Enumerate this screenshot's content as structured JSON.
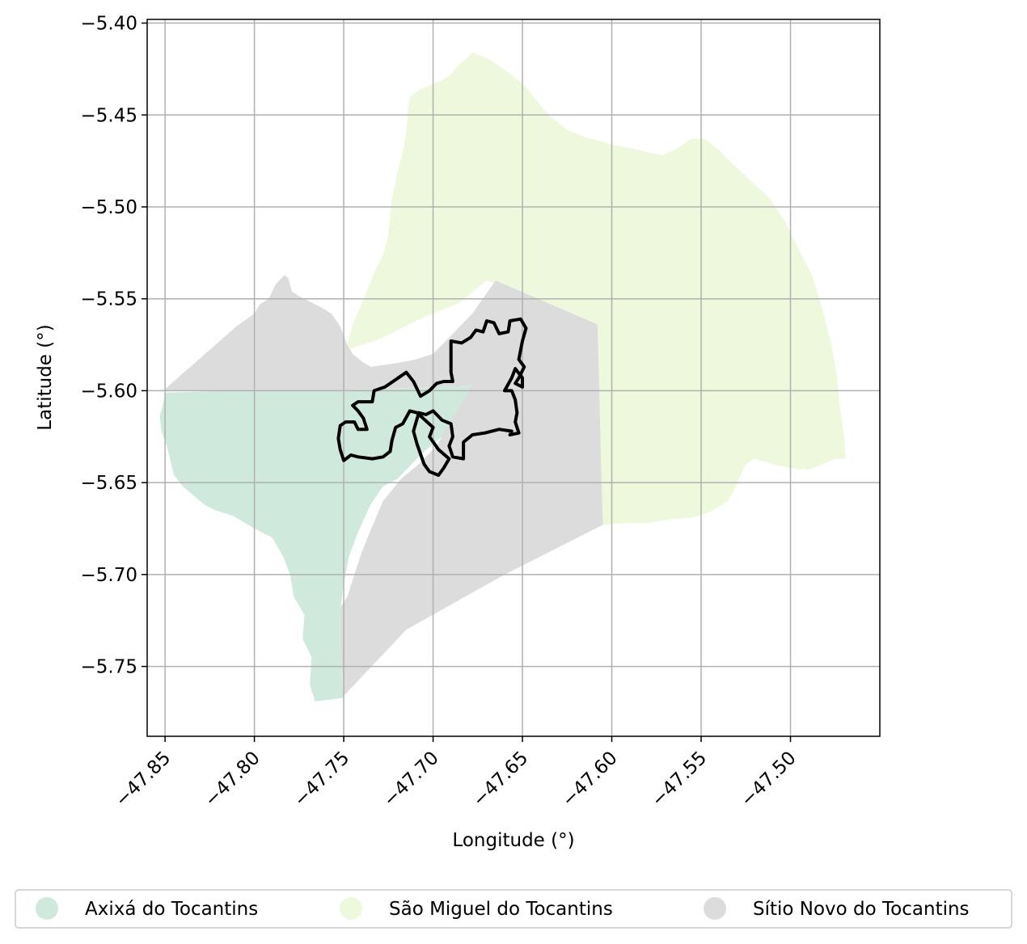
{
  "chart_data": {
    "type": "map",
    "xlabel": "Longitude (°)",
    "ylabel": "Latitude (°)",
    "xlim": [
      -47.86,
      -47.45
    ],
    "ylim": [
      -5.788,
      -5.398
    ],
    "xticks": [
      -47.85,
      -47.8,
      -47.75,
      -47.7,
      -47.65,
      -47.6,
      -47.55,
      -47.5
    ],
    "xtick_labels": [
      "−47.85",
      "−47.80",
      "−47.75",
      "−47.70",
      "−47.65",
      "−47.60",
      "−47.55",
      "−47.50"
    ],
    "yticks": [
      -5.4,
      -5.45,
      -5.5,
      -5.55,
      -5.6,
      -5.65,
      -5.7,
      -5.75
    ],
    "ytick_labels": [
      "−5.40",
      "−5.45",
      "−5.50",
      "−5.55",
      "−5.60",
      "−5.65",
      "−5.70",
      "−5.75"
    ],
    "grid": true,
    "legend_position": "bottom",
    "regions": [
      {
        "name": "Axixá do Tocantins",
        "color": "#cfeadc",
        "polygon": [
          [
            -47.85,
            -5.601
          ],
          [
            -47.81,
            -5.6
          ],
          [
            -47.77,
            -5.6
          ],
          [
            -47.73,
            -5.599
          ],
          [
            -47.7,
            -5.598
          ],
          [
            -47.678,
            -5.597
          ],
          [
            -47.682,
            -5.608
          ],
          [
            -47.69,
            -5.616
          ],
          [
            -47.695,
            -5.625
          ],
          [
            -47.705,
            -5.633
          ],
          [
            -47.713,
            -5.641
          ],
          [
            -47.72,
            -5.648
          ],
          [
            -47.728,
            -5.652
          ],
          [
            -47.735,
            -5.662
          ],
          [
            -47.742,
            -5.677
          ],
          [
            -47.747,
            -5.69
          ],
          [
            -47.75,
            -5.705
          ],
          [
            -47.752,
            -5.72
          ],
          [
            -47.752,
            -5.74
          ],
          [
            -47.751,
            -5.755
          ],
          [
            -47.75,
            -5.767
          ],
          [
            -47.757,
            -5.768
          ],
          [
            -47.766,
            -5.769
          ],
          [
            -47.769,
            -5.76
          ],
          [
            -47.768,
            -5.745
          ],
          [
            -47.773,
            -5.735
          ],
          [
            -47.772,
            -5.722
          ],
          [
            -47.778,
            -5.712
          ],
          [
            -47.78,
            -5.7
          ],
          [
            -47.784,
            -5.69
          ],
          [
            -47.79,
            -5.68
          ],
          [
            -47.8,
            -5.675
          ],
          [
            -47.812,
            -5.668
          ],
          [
            -47.822,
            -5.665
          ],
          [
            -47.828,
            -5.662
          ],
          [
            -47.833,
            -5.658
          ],
          [
            -47.84,
            -5.652
          ],
          [
            -47.845,
            -5.646
          ],
          [
            -47.847,
            -5.638
          ],
          [
            -47.849,
            -5.63
          ],
          [
            -47.852,
            -5.622
          ],
          [
            -47.853,
            -5.614
          ],
          [
            -47.851,
            -5.607
          ]
        ]
      },
      {
        "name": "São Miguel do Tocantins",
        "color": "#eef8dc",
        "polygon": [
          [
            -47.749,
            -5.578
          ],
          [
            -47.745,
            -5.564
          ],
          [
            -47.738,
            -5.548
          ],
          [
            -47.733,
            -5.536
          ],
          [
            -47.728,
            -5.526
          ],
          [
            -47.725,
            -5.515
          ],
          [
            -47.724,
            -5.505
          ],
          [
            -47.723,
            -5.495
          ],
          [
            -47.72,
            -5.482
          ],
          [
            -47.717,
            -5.47
          ],
          [
            -47.715,
            -5.46
          ],
          [
            -47.714,
            -5.447
          ],
          [
            -47.713,
            -5.44
          ],
          [
            -47.707,
            -5.436
          ],
          [
            -47.702,
            -5.434
          ],
          [
            -47.695,
            -5.431
          ],
          [
            -47.69,
            -5.428
          ],
          [
            -47.686,
            -5.423
          ],
          [
            -47.682,
            -5.42
          ],
          [
            -47.678,
            -5.416
          ],
          [
            -47.67,
            -5.419
          ],
          [
            -47.662,
            -5.424
          ],
          [
            -47.655,
            -5.429
          ],
          [
            -47.648,
            -5.435
          ],
          [
            -47.643,
            -5.441
          ],
          [
            -47.638,
            -5.447
          ],
          [
            -47.633,
            -5.452
          ],
          [
            -47.625,
            -5.458
          ],
          [
            -47.615,
            -5.462
          ],
          [
            -47.6,
            -5.466
          ],
          [
            -47.585,
            -5.469
          ],
          [
            -47.572,
            -5.472
          ],
          [
            -47.563,
            -5.468
          ],
          [
            -47.556,
            -5.463
          ],
          [
            -47.548,
            -5.463
          ],
          [
            -47.54,
            -5.469
          ],
          [
            -47.531,
            -5.478
          ],
          [
            -47.522,
            -5.486
          ],
          [
            -47.512,
            -5.495
          ],
          [
            -47.503,
            -5.508
          ],
          [
            -47.496,
            -5.522
          ],
          [
            -47.488,
            -5.537
          ],
          [
            -47.482,
            -5.556
          ],
          [
            -47.477,
            -5.575
          ],
          [
            -47.474,
            -5.593
          ],
          [
            -47.472,
            -5.612
          ],
          [
            -47.47,
            -5.625
          ],
          [
            -47.469,
            -5.637
          ],
          [
            -47.475,
            -5.637
          ],
          [
            -47.482,
            -5.64
          ],
          [
            -47.49,
            -5.643
          ],
          [
            -47.5,
            -5.642
          ],
          [
            -47.51,
            -5.64
          ],
          [
            -47.52,
            -5.637
          ],
          [
            -47.525,
            -5.64
          ],
          [
            -47.53,
            -5.651
          ],
          [
            -47.535,
            -5.66
          ],
          [
            -47.545,
            -5.666
          ],
          [
            -47.555,
            -5.669
          ],
          [
            -47.568,
            -5.67
          ],
          [
            -47.58,
            -5.672
          ],
          [
            -47.592,
            -5.672
          ],
          [
            -47.605,
            -5.673
          ],
          [
            -47.606,
            -5.64
          ],
          [
            -47.607,
            -5.6
          ],
          [
            -47.608,
            -5.564
          ],
          [
            -47.64,
            -5.551
          ],
          [
            -47.67,
            -5.54
          ],
          [
            -47.685,
            -5.552
          ],
          [
            -47.705,
            -5.56
          ],
          [
            -47.73,
            -5.572
          ]
        ]
      },
      {
        "name": "Sítio Novo do Tocantins",
        "color": "#dcdcdc",
        "polygon": [
          [
            -47.851,
            -5.6
          ],
          [
            -47.83,
            -5.582
          ],
          [
            -47.81,
            -5.565
          ],
          [
            -47.8,
            -5.558
          ],
          [
            -47.797,
            -5.553
          ],
          [
            -47.792,
            -5.55
          ],
          [
            -47.79,
            -5.546
          ],
          [
            -47.788,
            -5.542
          ],
          [
            -47.786,
            -5.54
          ],
          [
            -47.783,
            -5.537
          ],
          [
            -47.781,
            -5.539
          ],
          [
            -47.779,
            -5.546
          ],
          [
            -47.776,
            -5.548
          ],
          [
            -47.772,
            -5.55
          ],
          [
            -47.768,
            -5.552
          ],
          [
            -47.762,
            -5.555
          ],
          [
            -47.757,
            -5.558
          ],
          [
            -47.752,
            -5.565
          ],
          [
            -47.748,
            -5.575
          ],
          [
            -47.745,
            -5.58
          ],
          [
            -47.74,
            -5.584
          ],
          [
            -47.735,
            -5.587
          ],
          [
            -47.728,
            -5.586
          ],
          [
            -47.72,
            -5.585
          ],
          [
            -47.71,
            -5.583
          ],
          [
            -47.7,
            -5.58
          ],
          [
            -47.69,
            -5.57
          ],
          [
            -47.678,
            -5.558
          ],
          [
            -47.665,
            -5.54
          ],
          [
            -47.608,
            -5.564
          ],
          [
            -47.607,
            -5.6
          ],
          [
            -47.606,
            -5.64
          ],
          [
            -47.605,
            -5.673
          ],
          [
            -47.66,
            -5.7
          ],
          [
            -47.715,
            -5.73
          ],
          [
            -47.75,
            -5.766
          ],
          [
            -47.752,
            -5.74
          ],
          [
            -47.752,
            -5.718
          ],
          [
            -47.748,
            -5.712
          ],
          [
            -47.744,
            -5.7
          ],
          [
            -47.74,
            -5.688
          ],
          [
            -47.735,
            -5.676
          ],
          [
            -47.728,
            -5.66
          ],
          [
            -47.718,
            -5.648
          ],
          [
            -47.708,
            -5.64
          ],
          [
            -47.698,
            -5.63
          ],
          [
            -47.69,
            -5.616
          ],
          [
            -47.684,
            -5.607
          ],
          [
            -47.678,
            -5.597
          ],
          [
            -47.7,
            -5.598
          ],
          [
            -47.73,
            -5.599
          ],
          [
            -47.77,
            -5.6
          ],
          [
            -47.81,
            -5.6
          ]
        ]
      }
    ],
    "outline": {
      "color": "#000000",
      "polygon": [
        [
          -47.752,
          -5.619
        ],
        [
          -47.749,
          -5.617
        ],
        [
          -47.744,
          -5.617
        ],
        [
          -47.742,
          -5.621
        ],
        [
          -47.737,
          -5.621
        ],
        [
          -47.739,
          -5.615
        ],
        [
          -47.742,
          -5.611
        ],
        [
          -47.745,
          -5.608
        ],
        [
          -47.742,
          -5.606
        ],
        [
          -47.734,
          -5.606
        ],
        [
          -47.733,
          -5.6
        ],
        [
          -47.727,
          -5.598
        ],
        [
          -47.721,
          -5.594
        ],
        [
          -47.715,
          -5.59
        ],
        [
          -47.711,
          -5.595
        ],
        [
          -47.707,
          -5.603
        ],
        [
          -47.702,
          -5.6
        ],
        [
          -47.698,
          -5.596
        ],
        [
          -47.694,
          -5.595
        ],
        [
          -47.689,
          -5.595
        ],
        [
          -47.69,
          -5.59
        ],
        [
          -47.69,
          -5.58
        ],
        [
          -47.69,
          -5.573
        ],
        [
          -47.684,
          -5.574
        ],
        [
          -47.679,
          -5.571
        ],
        [
          -47.676,
          -5.567
        ],
        [
          -47.672,
          -5.568
        ],
        [
          -47.67,
          -5.562
        ],
        [
          -47.666,
          -5.563
        ],
        [
          -47.663,
          -5.569
        ],
        [
          -47.658,
          -5.568
        ],
        [
          -47.657,
          -5.562
        ],
        [
          -47.651,
          -5.561
        ],
        [
          -47.648,
          -5.566
        ],
        [
          -47.65,
          -5.573
        ],
        [
          -47.652,
          -5.583
        ],
        [
          -47.649,
          -5.587
        ],
        [
          -47.652,
          -5.593
        ],
        [
          -47.654,
          -5.596
        ],
        [
          -47.65,
          -5.598
        ],
        [
          -47.65,
          -5.593
        ],
        [
          -47.654,
          -5.588
        ],
        [
          -47.656,
          -5.593
        ],
        [
          -47.66,
          -5.6
        ],
        [
          -47.656,
          -5.6
        ],
        [
          -47.654,
          -5.605
        ],
        [
          -47.653,
          -5.612
        ],
        [
          -47.654,
          -5.617
        ],
        [
          -47.652,
          -5.623
        ],
        [
          -47.657,
          -5.624
        ],
        [
          -47.656,
          -5.622
        ],
        [
          -47.663,
          -5.621
        ],
        [
          -47.671,
          -5.623
        ],
        [
          -47.678,
          -5.624
        ],
        [
          -47.683,
          -5.628
        ],
        [
          -47.683,
          -5.637
        ],
        [
          -47.689,
          -5.636
        ],
        [
          -47.691,
          -5.63
        ],
        [
          -47.689,
          -5.625
        ],
        [
          -47.69,
          -5.618
        ],
        [
          -47.695,
          -5.616
        ],
        [
          -47.7,
          -5.611
        ],
        [
          -47.704,
          -5.613
        ],
        [
          -47.708,
          -5.612
        ],
        [
          -47.711,
          -5.622
        ],
        [
          -47.709,
          -5.629
        ],
        [
          -47.705,
          -5.64
        ],
        [
          -47.702,
          -5.644
        ],
        [
          -47.697,
          -5.646
        ],
        [
          -47.694,
          -5.642
        ],
        [
          -47.691,
          -5.637
        ],
        [
          -47.697,
          -5.632
        ],
        [
          -47.702,
          -5.625
        ],
        [
          -47.7,
          -5.62
        ],
        [
          -47.709,
          -5.612
        ],
        [
          -47.713,
          -5.611
        ],
        [
          -47.717,
          -5.618
        ],
        [
          -47.721,
          -5.62
        ],
        [
          -47.723,
          -5.627
        ],
        [
          -47.724,
          -5.633
        ],
        [
          -47.728,
          -5.636
        ],
        [
          -47.734,
          -5.637
        ],
        [
          -47.742,
          -5.636
        ],
        [
          -47.746,
          -5.635
        ],
        [
          -47.75,
          -5.638
        ],
        [
          -47.752,
          -5.632
        ],
        [
          -47.753,
          -5.626
        ]
      ]
    },
    "legend": [
      {
        "label": "Axixá do Tocantins",
        "color": "#cfeadc"
      },
      {
        "label": "São Miguel do Tocantins",
        "color": "#eef8dc"
      },
      {
        "label": "Sítio Novo do Tocantins",
        "color": "#dcdcdc"
      }
    ]
  }
}
